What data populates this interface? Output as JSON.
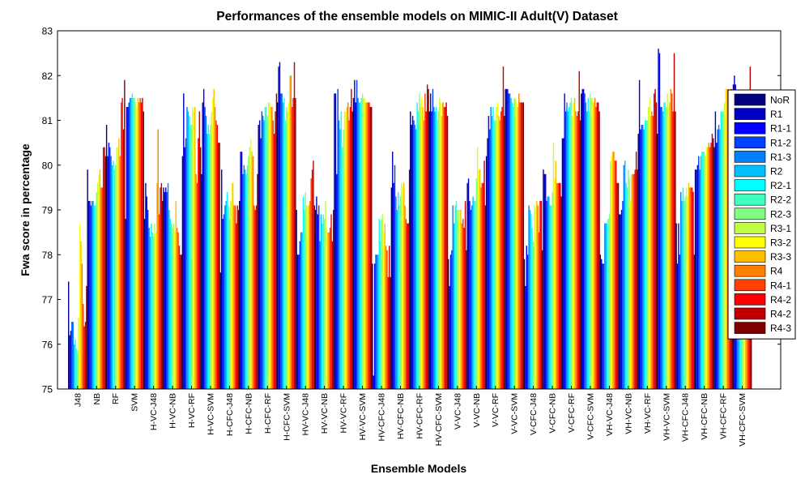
{
  "chart_data": {
    "type": "bar",
    "title": "Performances of the ensemble models on MIMIC-II Adult(V) Dataset",
    "xlabel": "Ensemble Models",
    "ylabel": "Fwa score in percentage",
    "ylim": [
      75,
      83
    ],
    "yticks": [
      "75",
      "76",
      "77",
      "78",
      "79",
      "80",
      "81",
      "82",
      "83"
    ],
    "grid": false,
    "legend_position": "right",
    "categories": [
      "J48",
      "NB",
      "RF",
      "SVM",
      "H-VC-J48",
      "H-VC-NB",
      "H-VC-RF",
      "H-VC-SVM",
      "H-CFC-J48",
      "H-CFC-NB",
      "H-CFC-RF",
      "H-CFC-SVM",
      "HV-VC-J48",
      "HV-VC-NB",
      "HV-VC-RF",
      "HV-VC-SVM",
      "HV-CFC-J48",
      "HV-CFC-NB",
      "HV-CFC-RF",
      "HV-CFC-SVM",
      "V-VC-J48",
      "V-VC-NB",
      "V-VC-RF",
      "V-VC-SVM",
      "V-CFC-J48",
      "V-CFC-NB",
      "V-CFC-RF",
      "V-CFC-SVM",
      "VH-VC-J48",
      "VH-VC-NB",
      "VH-VC-RF",
      "VH-VC-SVM",
      "VH-CFC-J48",
      "VH-CFC-NB",
      "VH-CFC-RF",
      "VH-CFC-SVM"
    ],
    "series": [
      {
        "name": "NoR",
        "color": "#000080",
        "values": [
          77.4,
          79.9,
          80.9,
          78.8,
          78.8,
          79.5,
          80.2,
          79.8,
          77.6,
          79.2,
          80.9,
          81.4,
          79.0,
          79.0,
          81.6,
          81.5,
          77.8,
          79.5,
          81.2,
          81.2,
          77.9,
          79.6,
          80.2,
          81.7,
          77.9,
          79.9,
          80.6,
          81.6,
          78.0,
          78.9,
          80.7,
          80.7,
          78.7,
          79.9,
          80.4,
          81.8
        ]
      },
      {
        "name": "R1",
        "color": "#0000c0",
        "values": [
          76.2,
          79.2,
          80.2,
          81.3,
          79.6,
          79.4,
          81.6,
          81.4,
          79.9,
          80.3,
          81.0,
          82.2,
          78.0,
          79.3,
          81.6,
          81.9,
          75.3,
          80.3,
          80.9,
          81.6,
          77.3,
          79.7,
          80.6,
          81.7,
          77.3,
          79.8,
          80.6,
          81.7,
          77.9,
          78.9,
          81.9,
          82.6,
          77.8,
          79.9,
          81.2,
          82.0
        ]
      },
      {
        "name": "R1-1",
        "color": "#0000ff",
        "values": [
          76.3,
          79.2,
          80.5,
          81.3,
          79.3,
          79.5,
          80.4,
          81.7,
          78.8,
          80.3,
          80.6,
          82.3,
          78.0,
          78.9,
          79.8,
          81.4,
          77.8,
          79.6,
          81.1,
          81.2,
          78.0,
          79.2,
          81.1,
          81.7,
          78.2,
          79.8,
          81.6,
          81.7,
          77.8,
          79.0,
          80.8,
          82.5,
          78.7,
          80.0,
          80.5,
          81.8
        ]
      },
      {
        "name": "R1-2",
        "color": "#0040ff",
        "values": [
          76.5,
          79.1,
          80.4,
          81.4,
          79.0,
          79.4,
          80.6,
          81.3,
          78.9,
          79.8,
          81.2,
          81.6,
          78.3,
          79.1,
          81.7,
          81.9,
          78.0,
          80.0,
          81.0,
          81.7,
          78.1,
          79.0,
          80.8,
          81.6,
          78.0,
          79.2,
          81.2,
          81.6,
          77.8,
          79.2,
          80.9,
          81.3,
          78.0,
          80.2,
          80.8,
          81.3
        ]
      },
      {
        "name": "R1-3",
        "color": "#0080ff",
        "values": [
          76.5,
          79.2,
          80.2,
          81.5,
          78.6,
          79.6,
          81.3,
          81.1,
          79.1,
          80.0,
          81.1,
          81.6,
          78.5,
          78.3,
          81.0,
          81.5,
          78.0,
          79.3,
          80.9,
          81.3,
          79.1,
          79.1,
          81.3,
          81.6,
          79.1,
          79.3,
          81.4,
          81.4,
          78.7,
          80.0,
          80.9,
          81.3,
          79.4,
          79.9,
          80.9,
          81.3
        ]
      },
      {
        "name": "R2",
        "color": "#00c0ff",
        "values": [
          76.0,
          79.2,
          80.0,
          81.5,
          78.4,
          79.0,
          81.2,
          80.7,
          79.2,
          79.9,
          81.0,
          81.4,
          78.5,
          78.9,
          80.8,
          81.4,
          78.0,
          79.0,
          80.8,
          81.2,
          78.7,
          79.3,
          81.1,
          81.5,
          79.0,
          79.3,
          81.2,
          81.2,
          78.7,
          80.1,
          80.8,
          81.2,
          79.2,
          80.2,
          80.8,
          81.1
        ]
      },
      {
        "name": "R2-1",
        "color": "#00ffff",
        "values": [
          76.1,
          79.1,
          80.1,
          81.6,
          78.7,
          78.8,
          81.1,
          80.9,
          79.4,
          79.8,
          81.3,
          81.5,
          79.3,
          78.7,
          81.2,
          81.4,
          78.8,
          79.4,
          81.4,
          81.3,
          79.1,
          79.2,
          81.3,
          81.4,
          78.9,
          79.1,
          81.3,
          81.5,
          78.7,
          79.6,
          81.0,
          81.4,
          79.5,
          80.3,
          81.2,
          81.5
        ]
      },
      {
        "name": "R2-2",
        "color": "#40ffc0",
        "values": [
          75.9,
          79.1,
          79.9,
          81.5,
          78.5,
          78.7,
          80.9,
          80.7,
          79.1,
          80.0,
          81.3,
          81.0,
          79.0,
          78.9,
          80.4,
          81.5,
          78.3,
          79.1,
          81.2,
          81.0,
          79.2,
          79.2,
          81.0,
          81.3,
          78.6,
          79.1,
          81.4,
          81.2,
          78.8,
          79.5,
          81.0,
          81.4,
          79.2,
          80.3,
          81.2,
          81.6
        ]
      },
      {
        "name": "R2-3",
        "color": "#80ff80",
        "values": [
          75.8,
          79.4,
          80.0,
          81.5,
          78.4,
          78.6,
          80.9,
          80.9,
          78.8,
          80.2,
          81.1,
          81.3,
          79.4,
          78.8,
          80.8,
          81.6,
          78.8,
          79.3,
          81.6,
          81.2,
          79.0,
          79.7,
          81.0,
          81.5,
          78.3,
          79.4,
          81.5,
          81.6,
          78.9,
          79.9,
          81.0,
          81.3,
          79.3,
          80.3,
          81.2,
          81.6
        ]
      },
      {
        "name": "R3-1",
        "color": "#c0ff40",
        "values": [
          76.6,
          79.6,
          80.4,
          81.4,
          78.7,
          78.7,
          81.3,
          81.2,
          79.2,
          80.4,
          81.4,
          81.2,
          79.1,
          79.2,
          81.2,
          81.5,
          78.9,
          79.6,
          81.3,
          81.5,
          79.0,
          80.4,
          81.3,
          81.5,
          79.1,
          80.5,
          81.1,
          81.5,
          80.1,
          79.7,
          81.3,
          81.6,
          79.5,
          80.2,
          81.4,
          81.5
        ]
      },
      {
        "name": "R3-2",
        "color": "#ffff00",
        "values": [
          78.7,
          79.8,
          80.4,
          81.3,
          78.5,
          78.5,
          81.2,
          81.5,
          79.6,
          80.6,
          81.4,
          81.4,
          79.1,
          78.6,
          81.2,
          81.5,
          78.5,
          79.5,
          81.5,
          81.4,
          79.0,
          79.9,
          81.4,
          81.4,
          79.0,
          79.7,
          81.4,
          81.5,
          80.2,
          79.2,
          81.5,
          81.3,
          79.3,
          80.4,
          81.7,
          81.7
        ]
      },
      {
        "name": "R3-3",
        "color": "#ffc000",
        "values": [
          78.3,
          79.9,
          80.6,
          81.5,
          79.6,
          79.2,
          81.3,
          81.7,
          79.6,
          80.3,
          81.3,
          82.0,
          79.1,
          78.5,
          81.3,
          81.4,
          78.7,
          79.6,
          81.3,
          81.1,
          79.0,
          79.9,
          81.1,
          81.3,
          79.2,
          80.1,
          81.5,
          81.4,
          80.3,
          79.8,
          81.1,
          81.4,
          79.6,
          80.4,
          81.7,
          81.6
        ]
      },
      {
        "name": "R4",
        "color": "#ff8000",
        "values": [
          77.8,
          79.5,
          80.2,
          81.4,
          80.8,
          78.6,
          79.8,
          81.3,
          79.1,
          80.2,
          81.3,
          82.0,
          79.2,
          78.5,
          81.4,
          81.4,
          78.2,
          79.1,
          81.0,
          81.4,
          78.7,
          79.5,
          81.0,
          81.6,
          79.1,
          79.6,
          81.2,
          81.5,
          80.3,
          79.8,
          81.2,
          81.7,
          79.5,
          80.5,
          81.7,
          81.5
        ]
      },
      {
        "name": "R4-1",
        "color": "#ff4000",
        "values": [
          76.9,
          79.5,
          81.4,
          81.5,
          78.9,
          78.5,
          79.6,
          81.0,
          79.1,
          79.1,
          81.0,
          81.3,
          79.7,
          78.6,
          81.0,
          81.4,
          78.1,
          78.8,
          81.6,
          81.3,
          78.8,
          79.6,
          81.2,
          81.4,
          78.5,
          79.6,
          81.1,
          81.3,
          80.1,
          79.8,
          81.1,
          81.6,
          79.5,
          80.4,
          81.4,
          81.3
        ]
      },
      {
        "name": "R4-2",
        "color": "#ff0000",
        "values": [
          76.4,
          80.4,
          81.5,
          81.4,
          79.5,
          78.2,
          80.6,
          80.9,
          78.7,
          79.0,
          80.7,
          81.5,
          79.9,
          78.9,
          81.3,
          81.4,
          77.5,
          78.7,
          81.2,
          81.3,
          78.6,
          79.6,
          81.3,
          81.4,
          79.2,
          79.6,
          81.2,
          81.4,
          80.1,
          79.9,
          81.6,
          81.2,
          79.5,
          80.5,
          81.3,
          81.3
        ]
      },
      {
        "name": "R4-2",
        "color": "#c00000",
        "values": [
          76.5,
          80.4,
          80.8,
          81.5,
          79.6,
          78.0,
          81.2,
          80.5,
          79.1,
          79.1,
          81.2,
          82.3,
          80.1,
          78.3,
          81.7,
          81.3,
          78.2,
          78.7,
          81.8,
          81.4,
          79.2,
          80.1,
          82.2,
          81.4,
          79.2,
          79.6,
          82.1,
          81.4,
          79.6,
          80.3,
          81.7,
          82.5,
          79.4,
          80.7,
          81.7,
          82.2
        ]
      },
      {
        "name": "R4-3",
        "color": "#800000",
        "values": [
          77.3,
          80.2,
          81.9,
          81.2,
          79.2,
          78.0,
          80.4,
          80.5,
          79.0,
          79.8,
          81.6,
          81.5,
          79.1,
          79.0,
          81.2,
          81.3,
          77.5,
          79.9,
          81.7,
          81.1,
          78.1,
          79.1,
          81.1,
          81.4,
          78.1,
          79.3,
          81.0,
          81.2,
          79.6,
          79.9,
          81.4,
          81.2,
          78.0,
          80.6,
          81.5,
          81.3
        ]
      }
    ]
  }
}
